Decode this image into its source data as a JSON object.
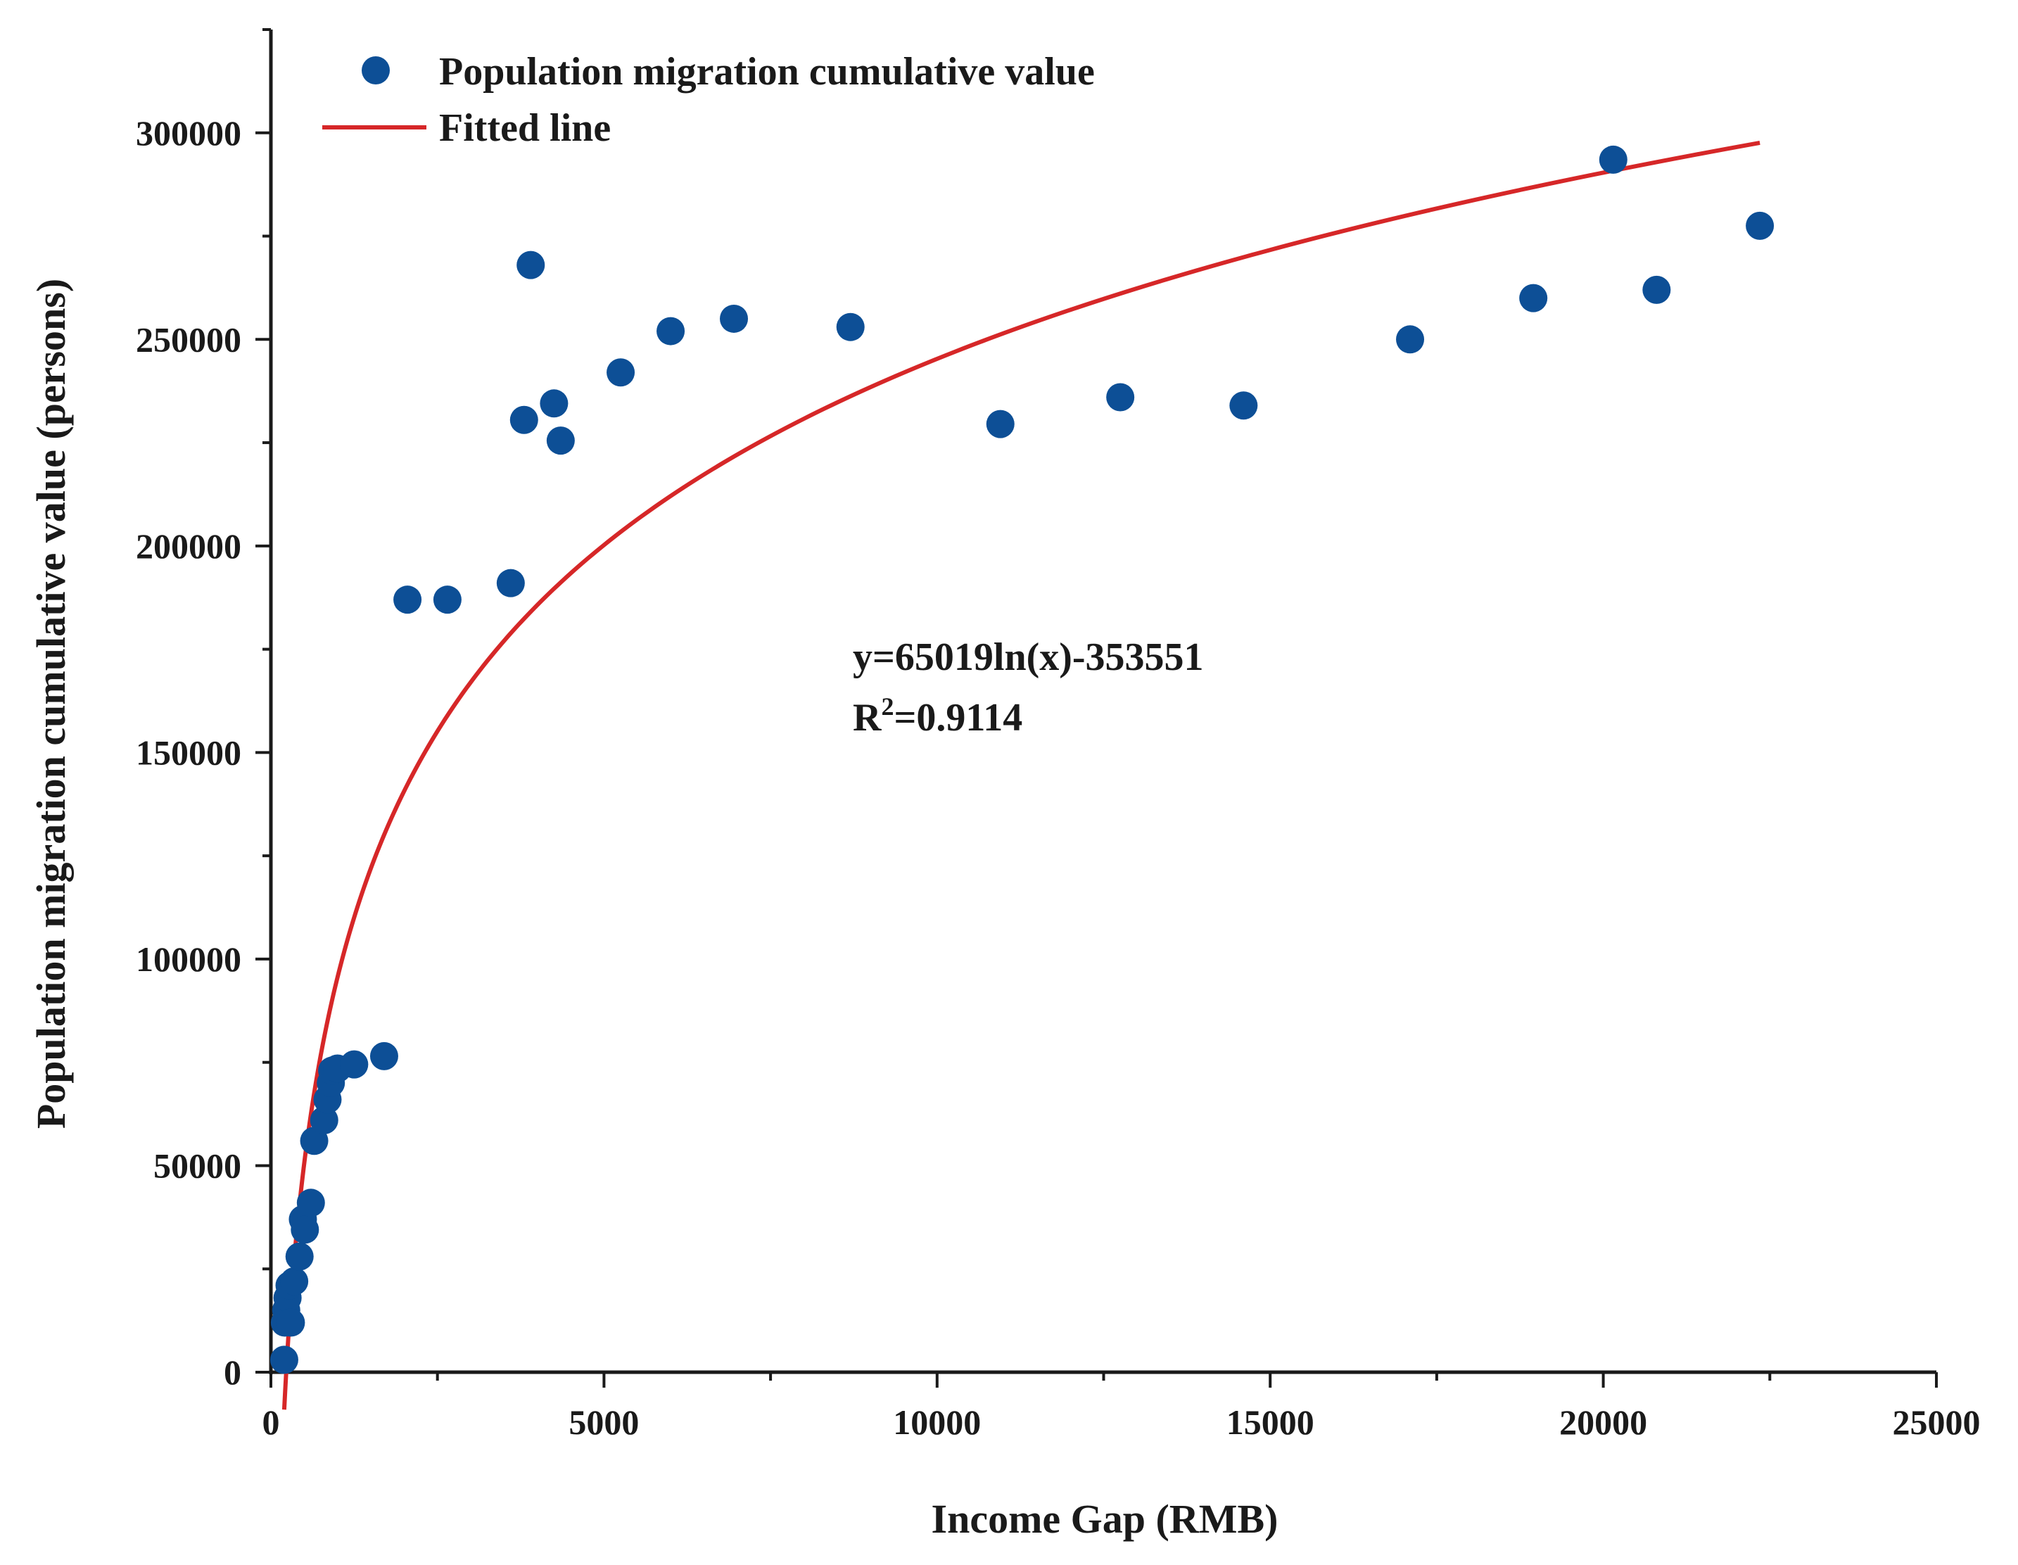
{
  "chart_data": {
    "type": "scatter",
    "title": "",
    "xlabel": "Income Gap (RMB)",
    "ylabel": "Population migration cumulative value (persons)",
    "xlim": [
      0,
      25000
    ],
    "ylim": [
      0,
      325000
    ],
    "x_ticks": [
      "0",
      "5000",
      "10000",
      "15000",
      "20000",
      "25000"
    ],
    "y_ticks": [
      "0",
      "50000",
      "100000",
      "150000",
      "200000",
      "250000",
      "300000"
    ],
    "legend_position": "top-left",
    "colors": {
      "points": "#0d4f96",
      "fit": "#d62728",
      "axis": "#1a1a1a"
    },
    "series": [
      {
        "name": "Population migration cumulative value",
        "kind": "scatter",
        "points": [
          [
            200,
            3000
          ],
          [
            210,
            12000
          ],
          [
            230,
            15000
          ],
          [
            250,
            18000
          ],
          [
            280,
            21000
          ],
          [
            300,
            12000
          ],
          [
            350,
            22000
          ],
          [
            430,
            28000
          ],
          [
            480,
            37000
          ],
          [
            510,
            34500
          ],
          [
            600,
            41000
          ],
          [
            650,
            56000
          ],
          [
            800,
            61000
          ],
          [
            850,
            66000
          ],
          [
            900,
            70000
          ],
          [
            920,
            73000
          ],
          [
            1000,
            73500
          ],
          [
            1250,
            74500
          ],
          [
            1700,
            76500
          ],
          [
            2050,
            187000
          ],
          [
            2650,
            187000
          ],
          [
            3600,
            191000
          ],
          [
            3800,
            230500
          ],
          [
            3900,
            268000
          ],
          [
            4250,
            234500
          ],
          [
            4350,
            225500
          ],
          [
            5250,
            242000
          ],
          [
            6000,
            252000
          ],
          [
            6950,
            255000
          ],
          [
            8700,
            253000
          ],
          [
            10950,
            229500
          ],
          [
            12750,
            236000
          ],
          [
            14600,
            234000
          ],
          [
            17100,
            250000
          ],
          [
            18950,
            260000
          ],
          [
            20150,
            293500
          ],
          [
            20800,
            262000
          ],
          [
            22350,
            277500
          ]
        ]
      },
      {
        "name": "Fitted line",
        "kind": "line",
        "equation": {
          "a": 65019,
          "b": -353551,
          "form": "a*ln(x)+b"
        },
        "x_range": [
          200,
          22350
        ]
      }
    ],
    "annotations": {
      "equation_text": "y=65019ln(x)-353551",
      "r2_label": "R",
      "r2_sup": "2",
      "r2_value": "=0.9114"
    }
  }
}
